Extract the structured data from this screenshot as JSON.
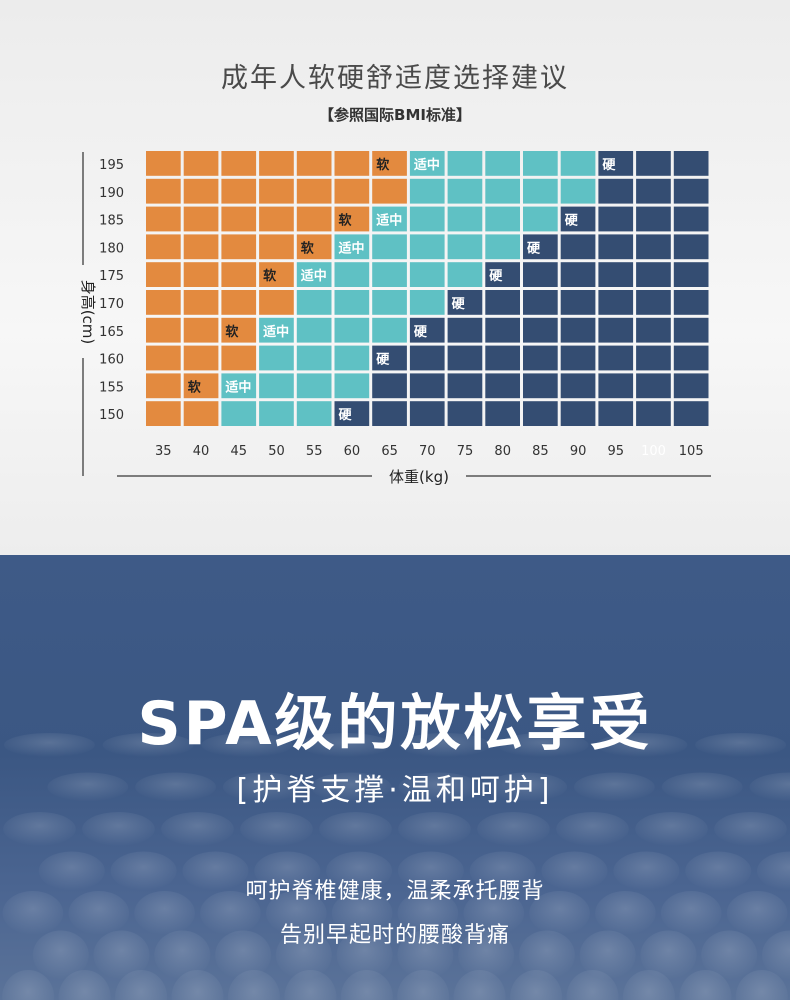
{
  "chart_data": {
    "type": "heatmap",
    "title": "成年人软硬舒适度选择建议",
    "subtitle": "【参照国际BMI标准】",
    "xlabel": "体重(kg)",
    "ylabel": "身高(cm)",
    "x": [
      35,
      40,
      45,
      50,
      55,
      60,
      65,
      70,
      75,
      80,
      85,
      90,
      95,
      100,
      105
    ],
    "y": [
      195,
      190,
      185,
      180,
      175,
      170,
      165,
      160,
      155,
      150
    ],
    "legend_labels": {
      "soft": "软",
      "medium": "适中",
      "hard": "硬"
    },
    "colors": {
      "soft": "#e38a3f",
      "medium": "#5fc1c4",
      "hard": "#344d72"
    },
    "rows": [
      {
        "height": 195,
        "soft_label_weight": 65,
        "medium_label_weight": 70,
        "hard_label_weight": 95
      },
      {
        "height": 190,
        "soft_label_weight": null,
        "medium_label_weight": null,
        "hard_label_weight": null
      },
      {
        "height": 185,
        "soft_label_weight": 60,
        "medium_label_weight": 65,
        "hard_label_weight": 90
      },
      {
        "height": 180,
        "soft_label_weight": 55,
        "medium_label_weight": 60,
        "hard_label_weight": 85
      },
      {
        "height": 175,
        "soft_label_weight": 50,
        "medium_label_weight": 55,
        "hard_label_weight": 80
      },
      {
        "height": 170,
        "soft_label_weight": null,
        "medium_label_weight": null,
        "hard_label_weight": 75
      },
      {
        "height": 165,
        "soft_label_weight": 45,
        "medium_label_weight": 50,
        "hard_label_weight": 70
      },
      {
        "height": 160,
        "soft_label_weight": null,
        "medium_label_weight": null,
        "hard_label_weight": 65
      },
      {
        "height": 155,
        "soft_label_weight": 40,
        "medium_label_weight": 45,
        "hard_label_weight": null
      },
      {
        "height": 150,
        "soft_label_weight": null,
        "medium_label_weight": null,
        "hard_label_weight": 60
      }
    ],
    "zones": [
      {
        "height": 195,
        "medium_from": 70,
        "hard_from": 95
      },
      {
        "height": 190,
        "medium_from": 70,
        "hard_from": 95
      },
      {
        "height": 185,
        "medium_from": 65,
        "hard_from": 90
      },
      {
        "height": 180,
        "medium_from": 60,
        "hard_from": 85
      },
      {
        "height": 175,
        "medium_from": 55,
        "hard_from": 80
      },
      {
        "height": 170,
        "medium_from": 55,
        "hard_from": 75
      },
      {
        "height": 165,
        "medium_from": 50,
        "hard_from": 70
      },
      {
        "height": 160,
        "medium_from": 50,
        "hard_from": 65
      },
      {
        "height": 155,
        "medium_from": 45,
        "hard_from": 65
      },
      {
        "height": 150,
        "medium_from": 45,
        "hard_from": 60
      }
    ]
  },
  "promo": {
    "headline": "SPA级的放松享受",
    "tagline": "[护脊支撑·温和呵护]",
    "body_line1": "呵护脊椎健康，温柔承托腰背",
    "body_line2": "告别早起时的腰酸背痛"
  }
}
